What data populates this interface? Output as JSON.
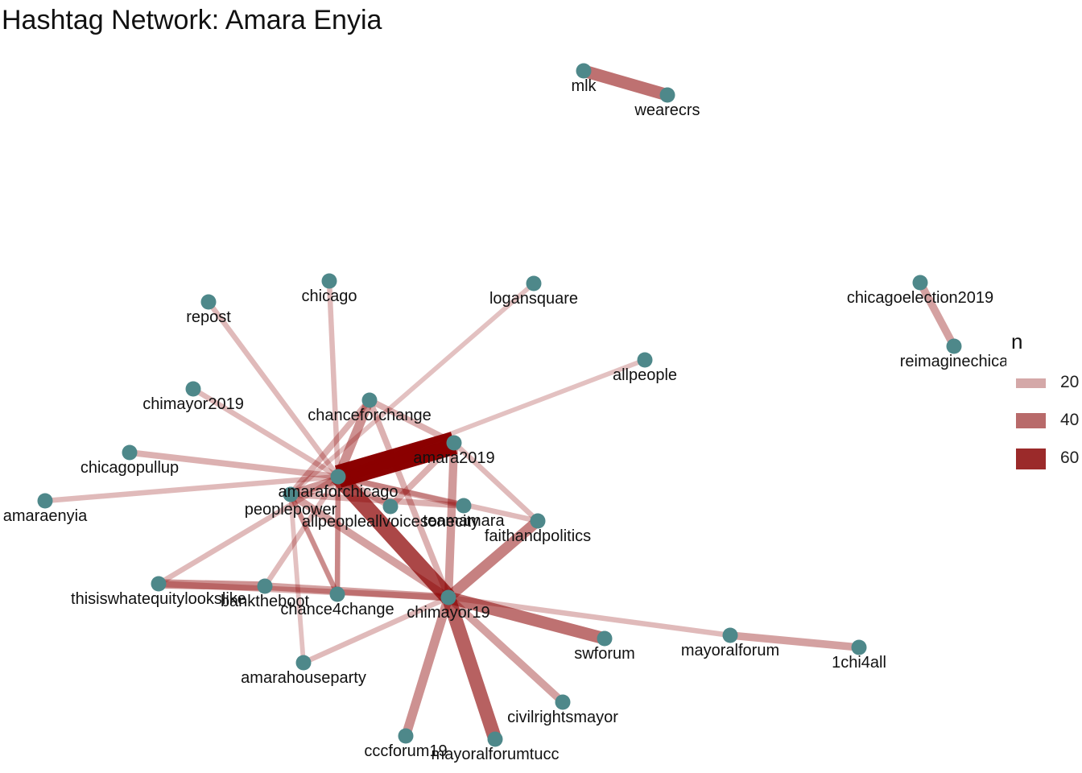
{
  "title": "Hashtag Network: Amara Enyia",
  "legend": {
    "title": "n",
    "items": [
      {
        "label": "20",
        "weight": 20,
        "color": "#d4a8a8"
      },
      {
        "label": "40",
        "weight": 40,
        "color": "#b86a6a"
      },
      {
        "label": "60",
        "weight": 60,
        "color": "#9b2a2a"
      }
    ]
  },
  "colors": {
    "node": "#4e888a",
    "edge": "#8b0000",
    "label": "#111111"
  },
  "nodes": [
    {
      "id": "mlk",
      "label": "mlk"
    },
    {
      "id": "wearecrs",
      "label": "wearecrs"
    },
    {
      "id": "chicagoelection2019",
      "label": "chicagoelection2019"
    },
    {
      "id": "reimaginechicago",
      "label": "reimaginechica"
    },
    {
      "id": "repost",
      "label": "repost"
    },
    {
      "id": "chicago",
      "label": "chicago"
    },
    {
      "id": "logansquare",
      "label": "logansquare"
    },
    {
      "id": "allpeople",
      "label": "allpeople"
    },
    {
      "id": "chimayor2019",
      "label": "chimayor2019"
    },
    {
      "id": "chanceforchange",
      "label": "chanceforchange"
    },
    {
      "id": "amara2019",
      "label": "amara2019"
    },
    {
      "id": "chicagopullup",
      "label": "chicagopullup"
    },
    {
      "id": "amaraforchicago",
      "label": "amaraforchicago"
    },
    {
      "id": "amaraenyia",
      "label": "amaraenyia"
    },
    {
      "id": "peoplepower",
      "label": "peoplepower"
    },
    {
      "id": "allpeopleallvoicesoneCity",
      "label": "allpeopleallvoicesonecity"
    },
    {
      "id": "teamamara",
      "label": "teamamara"
    },
    {
      "id": "faithandpolitics",
      "label": "faithandpolitics"
    },
    {
      "id": "thisiswhatequitylookslike",
      "label": "thisiswhatequitylookslike"
    },
    {
      "id": "banktheboot",
      "label": "banktheboot"
    },
    {
      "id": "chance4change",
      "label": "chance4change"
    },
    {
      "id": "chimayor19",
      "label": "chimayor19"
    },
    {
      "id": "swforum",
      "label": "swforum"
    },
    {
      "id": "mayoralforum",
      "label": "mayoralforum"
    },
    {
      "id": "1chi4all",
      "label": "1chi4all"
    },
    {
      "id": "amarahouseparty",
      "label": "amarahouseparty"
    },
    {
      "id": "civilrightsmayor",
      "label": "civilrightsmayor"
    },
    {
      "id": "cccforum19",
      "label": "cccforum19"
    },
    {
      "id": "mayoralforumtucc",
      "label": "mayoralforumtucc"
    }
  ],
  "edges": [
    {
      "from": "mlk",
      "to": "wearecrs",
      "n": 35
    },
    {
      "from": "chicagoelection2019",
      "to": "reimaginechicago",
      "n": 20
    },
    {
      "from": "amaraforchicago",
      "to": "amara2019",
      "n": 70
    },
    {
      "from": "amaraforchicago",
      "to": "chimayor19",
      "n": 48
    },
    {
      "from": "chimayor19",
      "to": "mayoralforumtucc",
      "n": 40
    },
    {
      "from": "chimayor19",
      "to": "swforum",
      "n": 35
    },
    {
      "from": "chimayor19",
      "to": "faithandpolitics",
      "n": 30
    },
    {
      "from": "chimayor19",
      "to": "cccforum19",
      "n": 25
    },
    {
      "from": "chimayor19",
      "to": "civilrightsmayor",
      "n": 20
    },
    {
      "from": "chimayor19",
      "to": "amara2019",
      "n": 22
    },
    {
      "from": "chimayor19",
      "to": "peoplepower",
      "n": 20
    },
    {
      "from": "chimayor19",
      "to": "banktheboot",
      "n": 20
    },
    {
      "from": "chimayor19",
      "to": "mayoralforum",
      "n": 12
    },
    {
      "from": "chimayor19",
      "to": "amarahouseparty",
      "n": 12
    },
    {
      "from": "chimayor19",
      "to": "chanceforchange",
      "n": 15
    },
    {
      "from": "mayoralforum",
      "to": "1chi4all",
      "n": 20
    },
    {
      "from": "thisiswhatequitylookslike",
      "to": "banktheboot",
      "n": 25
    },
    {
      "from": "thisiswhatequitylookslike",
      "to": "chimayor19",
      "n": 15
    },
    {
      "from": "thisiswhatequitylookslike",
      "to": "amaraforchicago",
      "n": 12
    },
    {
      "from": "banktheboot",
      "to": "amaraforchicago",
      "n": 12
    },
    {
      "from": "chance4change",
      "to": "amaraforchicago",
      "n": 12
    },
    {
      "from": "chance4change",
      "to": "peoplepower",
      "n": 12
    },
    {
      "from": "chanceforchange",
      "to": "amaraforchicago",
      "n": 25
    },
    {
      "from": "chanceforchange",
      "to": "peoplepower",
      "n": 15
    },
    {
      "from": "chanceforchange",
      "to": "amara2019",
      "n": 15
    },
    {
      "from": "amara2019",
      "to": "peoplepower",
      "n": 22
    },
    {
      "from": "amara2019",
      "to": "allpeopleallvoicesoneCity",
      "n": 15
    },
    {
      "from": "amara2019",
      "to": "faithandpolitics",
      "n": 12
    },
    {
      "from": "amaraforchicago",
      "to": "teamamara",
      "n": 15
    },
    {
      "from": "peoplepower",
      "to": "teamamara",
      "n": 15
    },
    {
      "from": "amaraforchicago",
      "to": "faithandpolitics",
      "n": 12
    },
    {
      "from": "amaraforchicago",
      "to": "allpeopleallvoicesoneCity",
      "n": 15
    },
    {
      "from": "repost",
      "to": "amaraforchicago",
      "n": 12
    },
    {
      "from": "chicago",
      "to": "amaraforchicago",
      "n": 12
    },
    {
      "from": "logansquare",
      "to": "peoplepower",
      "n": 10
    },
    {
      "from": "allpeople",
      "to": "amaraforchicago",
      "n": 10
    },
    {
      "from": "chimayor2019",
      "to": "amaraforchicago",
      "n": 12
    },
    {
      "from": "chicagopullup",
      "to": "amaraforchicago",
      "n": 15
    },
    {
      "from": "amaraenyia",
      "to": "amaraforchicago",
      "n": 12
    },
    {
      "from": "peoplepower",
      "to": "amarahouseparty",
      "n": 10
    },
    {
      "from": "peoplepower",
      "to": "chance4change",
      "n": 10
    },
    {
      "from": "amaraforchicago",
      "to": "chance4change",
      "n": 12
    }
  ]
}
